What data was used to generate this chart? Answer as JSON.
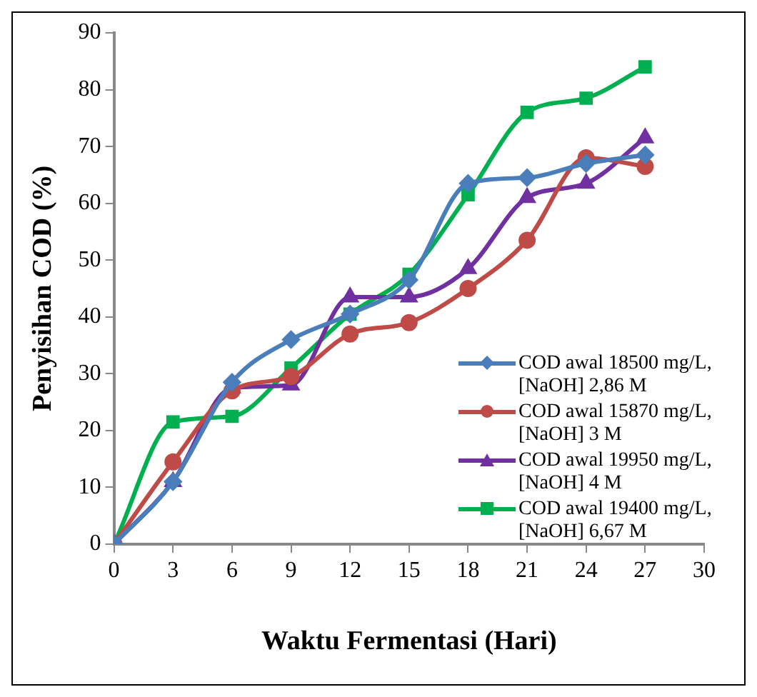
{
  "chart_data": {
    "type": "line",
    "xlabel": "Waktu Fermentasi (Hari)",
    "ylabel": "Penyisihan COD (%)",
    "x": [
      0,
      3,
      6,
      9,
      12,
      15,
      18,
      21,
      24,
      27
    ],
    "xlim": [
      0,
      30
    ],
    "xticks": [
      0,
      3,
      6,
      9,
      12,
      15,
      18,
      21,
      24,
      27,
      30
    ],
    "ylim": [
      0,
      90
    ],
    "yticks": [
      0,
      10,
      20,
      30,
      40,
      50,
      60,
      70,
      80,
      90
    ],
    "grid": false,
    "legend": "bottom right",
    "series": [
      {
        "name": "COD awal 18500 mg/L, [NaOH] 2,86 M",
        "color": "#4a7ebb",
        "marker": "diamond",
        "values": [
          0,
          11,
          28.5,
          36,
          40.5,
          46.5,
          63.5,
          64.5,
          67,
          68.5
        ]
      },
      {
        "name": "COD awal 15870 mg/L, [NaOH] 3 M",
        "color": "#be4b48",
        "marker": "circle",
        "values": [
          0,
          14.5,
          27,
          29.5,
          37,
          39,
          45,
          53.5,
          68,
          66.5
        ]
      },
      {
        "name": "COD awal 19950 mg/L, [NaOH] 4 M",
        "color": "#7030a0",
        "marker": "triangle",
        "values": [
          0,
          11,
          27.5,
          28,
          43.5,
          43.5,
          48.5,
          61,
          63.5,
          71.5
        ]
      },
      {
        "name": "COD awal 19400 mg/L, [NaOH] 6,67 M",
        "color": "#00b050",
        "marker": "square",
        "values": [
          0,
          21.5,
          22.5,
          31,
          40.5,
          47.5,
          61.5,
          76,
          78.5,
          84
        ]
      }
    ]
  }
}
